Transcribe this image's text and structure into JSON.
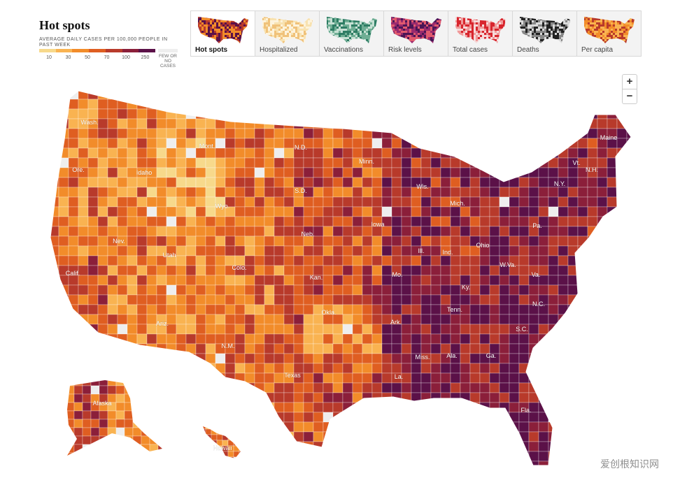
{
  "legend": {
    "title": "Hot spots",
    "subtitle": "AVERAGE DAILY CASES PER 100,000 PEOPLE IN PAST WEEK",
    "ticks": [
      "10",
      "30",
      "50",
      "70",
      "100",
      "250"
    ],
    "nodata_label": "FEW OR NO CASES",
    "scale_colors": [
      "#f7d98b",
      "#f9b351",
      "#f28c2a",
      "#df5e21",
      "#b83a2b",
      "#8b1f3a",
      "#5b1148"
    ],
    "nodata_color": "#eeeeee"
  },
  "tabs": [
    {
      "label": "Hot spots",
      "active": true,
      "colors": [
        "#5b1148",
        "#b83a2b",
        "#f28c2a"
      ]
    },
    {
      "label": "Hospitalized",
      "active": false,
      "colors": [
        "#f0c27a",
        "#f8e2b0",
        "#fdf3dc"
      ]
    },
    {
      "label": "Vaccinations",
      "active": false,
      "colors": [
        "#2e7d64",
        "#6fae94",
        "#c7e0d4"
      ]
    },
    {
      "label": "Risk levels",
      "active": false,
      "colors": [
        "#4a1656",
        "#9a2a6e",
        "#e05a6e"
      ]
    },
    {
      "label": "Total cases",
      "active": false,
      "colors": [
        "#d8262e",
        "#f09a9a",
        "#f6dada"
      ]
    },
    {
      "label": "Deaths",
      "active": false,
      "colors": [
        "#222222",
        "#888888",
        "#d9d9d9"
      ]
    },
    {
      "label": "Per capita",
      "active": false,
      "colors": [
        "#b83a2b",
        "#f28c2a",
        "#f9b351"
      ]
    }
  ],
  "zoom": {
    "in_label": "+",
    "out_label": "−"
  },
  "map": {
    "state_labels": [
      "Wash.",
      "Ore.",
      "Calif.",
      "Nev.",
      "Idaho",
      "Mont.",
      "Wyo.",
      "Utah",
      "Ariz.",
      "Colo.",
      "N.M.",
      "N.D.",
      "S.D.",
      "Neb.",
      "Kan.",
      "Okla.",
      "Texas",
      "Minn.",
      "Iowa",
      "Mo.",
      "Ark.",
      "La.",
      "Wis.",
      "Ill.",
      "Mich.",
      "Ind.",
      "Ohio",
      "Ky.",
      "Tenn.",
      "Miss.",
      "Ala.",
      "Ga.",
      "Fla.",
      "S.C.",
      "N.C.",
      "Va.",
      "W.Va.",
      "Pa.",
      "N.Y.",
      "Maine",
      "Vt.",
      "N.H.",
      "Alaska",
      "Hawaii"
    ]
  },
  "watermark": "爱创根知识网"
}
